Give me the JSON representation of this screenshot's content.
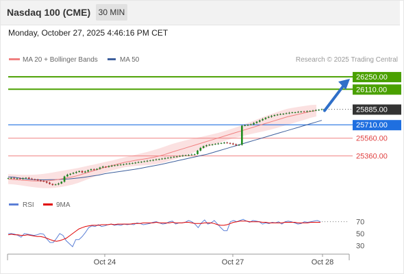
{
  "header": {
    "title": "Nasdaq 100 (CME)",
    "timeframe": "30 MIN",
    "datetime": "Monday, October 27, 2025 4:46:16 PM CET"
  },
  "chart_data": [
    {
      "type": "candlestick",
      "legend": [
        {
          "label": "MA 20 + Bollinger Bands",
          "color": "#f08080"
        },
        {
          "label": "MA 50",
          "color": "#3d5f9c"
        }
      ],
      "credit": "Research © 2025 Trading Central",
      "y_range": [
        24880,
        26420
      ],
      "levels": [
        {
          "label": "26250.00",
          "value": 26250,
          "kind": "target",
          "color": "#4aa000"
        },
        {
          "label": "26110.00",
          "value": 26110,
          "kind": "target",
          "color": "#4aa000"
        },
        {
          "label": "25885.00",
          "value": 25885,
          "kind": "last",
          "color": "#333333"
        },
        {
          "label": "25710.00",
          "value": 25710,
          "kind": "pivot",
          "color": "#1f6fe0"
        },
        {
          "label": "25560.00",
          "value": 25560,
          "kind": "support",
          "color": "#f08080"
        },
        {
          "label": "25360.00",
          "value": 25360,
          "kind": "support",
          "color": "#f08080"
        }
      ],
      "closes": [
        25110,
        25112,
        25105,
        25108,
        25102,
        25110,
        25115,
        25104,
        25098,
        25095,
        25085,
        25080,
        25072,
        25060,
        25045,
        25035,
        25040,
        25050,
        25070,
        25130,
        25150,
        25160,
        25170,
        25180,
        25190,
        25175,
        25185,
        25200,
        25210,
        25205,
        25215,
        25230,
        25240,
        25235,
        25245,
        25250,
        25255,
        25260,
        25262,
        25268,
        25272,
        25275,
        25280,
        25285,
        25290,
        25295,
        25300,
        25305,
        25310,
        25315,
        25320,
        25325,
        25330,
        25335,
        25340,
        25345,
        25350,
        25355,
        25360,
        25365,
        25368,
        25372,
        25376,
        25380,
        25420,
        25450,
        25470,
        25480,
        25485,
        25490,
        25495,
        25500,
        25505,
        25510,
        25505,
        25500,
        25490,
        25480,
        25485,
        25700,
        25705,
        25710,
        25715,
        25730,
        25745,
        25760,
        25775,
        25790,
        25800,
        25810,
        25820,
        25825,
        25830,
        25835,
        25840,
        25845,
        25850,
        25850,
        25855,
        25860,
        25858,
        25862,
        25866,
        25870,
        25875,
        25880,
        25885
      ],
      "ma20": [
        25100,
        25095,
        25090,
        25085,
        25080,
        25078,
        25078,
        25082,
        25090,
        25100,
        25112,
        25125,
        25140,
        25160,
        25180,
        25200,
        25220,
        25238,
        25255,
        25272,
        25288,
        25300,
        25312,
        25322,
        25332,
        25345,
        25360,
        25378,
        25400,
        25420,
        25440,
        25460,
        25480,
        25500,
        25520,
        25540,
        25560,
        25580,
        25600,
        25620,
        25640,
        25660,
        25680,
        25700,
        25720,
        25740,
        25760,
        25780,
        25800,
        25815,
        25830,
        25845,
        25860,
        25870
      ],
      "ma50": [
        25125,
        25120,
        25110,
        25100,
        25095,
        25092,
        25092,
        25093,
        25095,
        25098,
        25102,
        25108,
        25115,
        25125,
        25135,
        25145,
        25160,
        25170,
        25180,
        25190,
        25200,
        25210,
        25222,
        25235,
        25248,
        25260,
        25275,
        25290,
        25305,
        25320,
        25335,
        25350,
        25365,
        25380,
        25400,
        25420,
        25440,
        25460,
        25480,
        25500,
        25520,
        25540,
        25560,
        25580,
        25600,
        25620,
        25640,
        25660,
        25680,
        25700,
        25720,
        25740,
        25760
      ],
      "projection": {
        "from": 25885,
        "to": 26250
      }
    },
    {
      "type": "line",
      "legend": [
        {
          "label": "RSI",
          "color": "#5b7fd6"
        },
        {
          "label": "9MA",
          "color": "#e00000"
        }
      ],
      "y_ticks": [
        70,
        50,
        30
      ],
      "y_range": [
        20,
        80
      ],
      "rsi": [
        50,
        50,
        49,
        47,
        44,
        50,
        49,
        48,
        47,
        48,
        50,
        49,
        41,
        35,
        35,
        42,
        50,
        47,
        38,
        33,
        28,
        40,
        40,
        45,
        52,
        60,
        63,
        62,
        65,
        62,
        63,
        65,
        66,
        64,
        65,
        64,
        66,
        65,
        66,
        65,
        68,
        67,
        65,
        66,
        67,
        69,
        70,
        68,
        66,
        67,
        70,
        71,
        66,
        68,
        68,
        69,
        72,
        70,
        66,
        60,
        68,
        73,
        66,
        68,
        72,
        66,
        60,
        55,
        55,
        70,
        72,
        70,
        72,
        74,
        71,
        69,
        72,
        71,
        70,
        66,
        68,
        67,
        69,
        68,
        70,
        66,
        70,
        71,
        70,
        68,
        66,
        67,
        70,
        69,
        70,
        71,
        72,
        70
      ],
      "ma9": [
        48,
        49,
        48,
        48,
        47,
        47,
        48,
        47,
        46,
        45,
        45,
        44,
        42,
        40,
        38,
        37,
        38,
        40,
        42,
        46,
        50,
        54,
        58,
        60,
        62,
        63,
        64,
        64,
        64,
        65,
        65,
        65,
        66,
        65,
        66,
        66,
        66,
        66,
        66,
        67,
        67,
        67,
        68,
        68,
        68,
        68,
        69,
        68,
        68,
        68,
        68,
        69,
        68,
        68,
        68,
        69,
        69,
        68,
        67,
        67,
        67,
        68,
        68,
        68,
        67,
        65,
        64,
        64,
        65,
        67,
        69,
        70,
        71,
        71,
        71,
        70,
        70,
        70,
        70,
        69,
        69,
        68,
        68,
        68,
        68,
        68,
        69,
        69,
        69,
        69,
        68,
        68,
        68,
        68,
        69,
        69,
        69,
        69
      ],
      "x_ticks": [
        "Oct 24",
        "Oct 27",
        "Oct 28"
      ]
    }
  ]
}
